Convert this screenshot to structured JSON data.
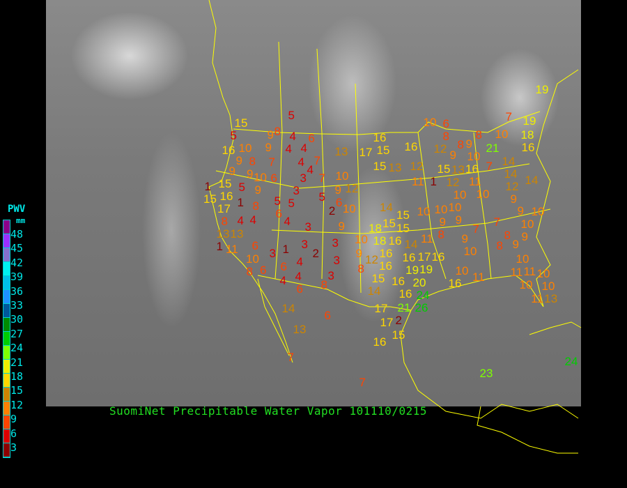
{
  "title": "SuomiNet Precipitable Water Vapor 101110/0215",
  "legend": {
    "title": "PWV",
    "unit": "mm",
    "labels": [
      "48",
      "45",
      "42",
      "39",
      "36",
      "33",
      "30",
      "27",
      "24",
      "21",
      "18",
      "15",
      "12",
      "9",
      "6",
      "3"
    ],
    "colors": [
      "#8b008b",
      "#9b30ff",
      "#8470cc",
      "#00f0f0",
      "#00bfe8",
      "#1e90ff",
      "#00589c",
      "#008b00",
      "#00cd00",
      "#7fff00",
      "#eeee00",
      "#ffd700",
      "#cd8500",
      "#ff8000",
      "#ff4500",
      "#dd0000",
      "#8b0000"
    ]
  },
  "colors": {
    "boundaries": "#ffff00",
    "title": "#22e022",
    "legend_text": "#00e8e8"
  },
  "stations": [
    5,
    15,
    5,
    8,
    4,
    6,
    16,
    10,
    9,
    9,
    4,
    4,
    9,
    8,
    7,
    4,
    7,
    9,
    10,
    6,
    9,
    4,
    3,
    7,
    10,
    1,
    15,
    5,
    9,
    3,
    5,
    9,
    12,
    6,
    15,
    16,
    1,
    8,
    5,
    5,
    2,
    10,
    17,
    8,
    4,
    4,
    6,
    4,
    3,
    9,
    13,
    13,
    1,
    11,
    6,
    3,
    1,
    3,
    2,
    3,
    3,
    10,
    8,
    6,
    6,
    4,
    4,
    4,
    3,
    6,
    8,
    14,
    6,
    13,
    7,
    10,
    6,
    16,
    15,
    17,
    13,
    16,
    8,
    12,
    8,
    9,
    9,
    8,
    10,
    18,
    19,
    7,
    21,
    16,
    10,
    16,
    7,
    14,
    15,
    13,
    12,
    15,
    13,
    11,
    1,
    11,
    14,
    14,
    12,
    10,
    12,
    9,
    10,
    10,
    9,
    14,
    15,
    10,
    10,
    15,
    15,
    18,
    16,
    9,
    8,
    11,
    7,
    9,
    10,
    7,
    10,
    9,
    8,
    8,
    9,
    9,
    10,
    10,
    18,
    14,
    9,
    8,
    12,
    16,
    16,
    16,
    17,
    16,
    19,
    19,
    15,
    14,
    16,
    20,
    16,
    24,
    26,
    10,
    11,
    16,
    11,
    10,
    11,
    10,
    10,
    10,
    11,
    13,
    17,
    21,
    17,
    2,
    15,
    16,
    23,
    24,
    19,
    7
  ]
}
